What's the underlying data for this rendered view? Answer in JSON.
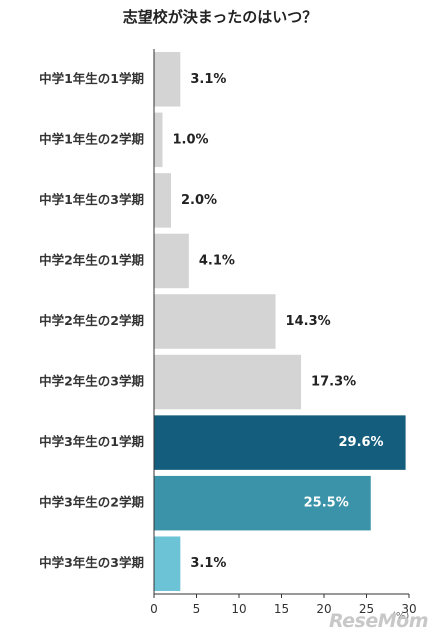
{
  "chart_data": {
    "type": "bar",
    "orientation": "horizontal",
    "title": "志望校が決まったのはいつ？",
    "categories": [
      "中学1年生の1学期",
      "中学1年生の2学期",
      "中学1年生の3学期",
      "中学2年生の1学期",
      "中学2年生の2学期",
      "中学2年生の3学期",
      "中学3年生の1学期",
      "中学3年生の2学期",
      "中学3年生の3学期"
    ],
    "values": [
      3.1,
      1.0,
      2.0,
      4.1,
      14.3,
      17.3,
      29.6,
      25.5,
      3.1
    ],
    "value_labels": [
      "3.1%",
      "1.0%",
      "2.0%",
      "4.1%",
      "14.3%",
      "17.3%",
      "29.6%",
      "25.5%",
      "3.1%"
    ],
    "bar_colors": [
      "#d4d4d4",
      "#d4d4d4",
      "#d4d4d4",
      "#d4d4d4",
      "#d4d4d4",
      "#d4d4d4",
      "#155d7c",
      "#3a93a8",
      "#6dc3d6"
    ],
    "xlim": [
      0,
      30
    ],
    "xticks": [
      0,
      5,
      10,
      15,
      20,
      25,
      30
    ],
    "axis_unit": "(%)",
    "grid": false
  },
  "watermark": "ReseMom"
}
